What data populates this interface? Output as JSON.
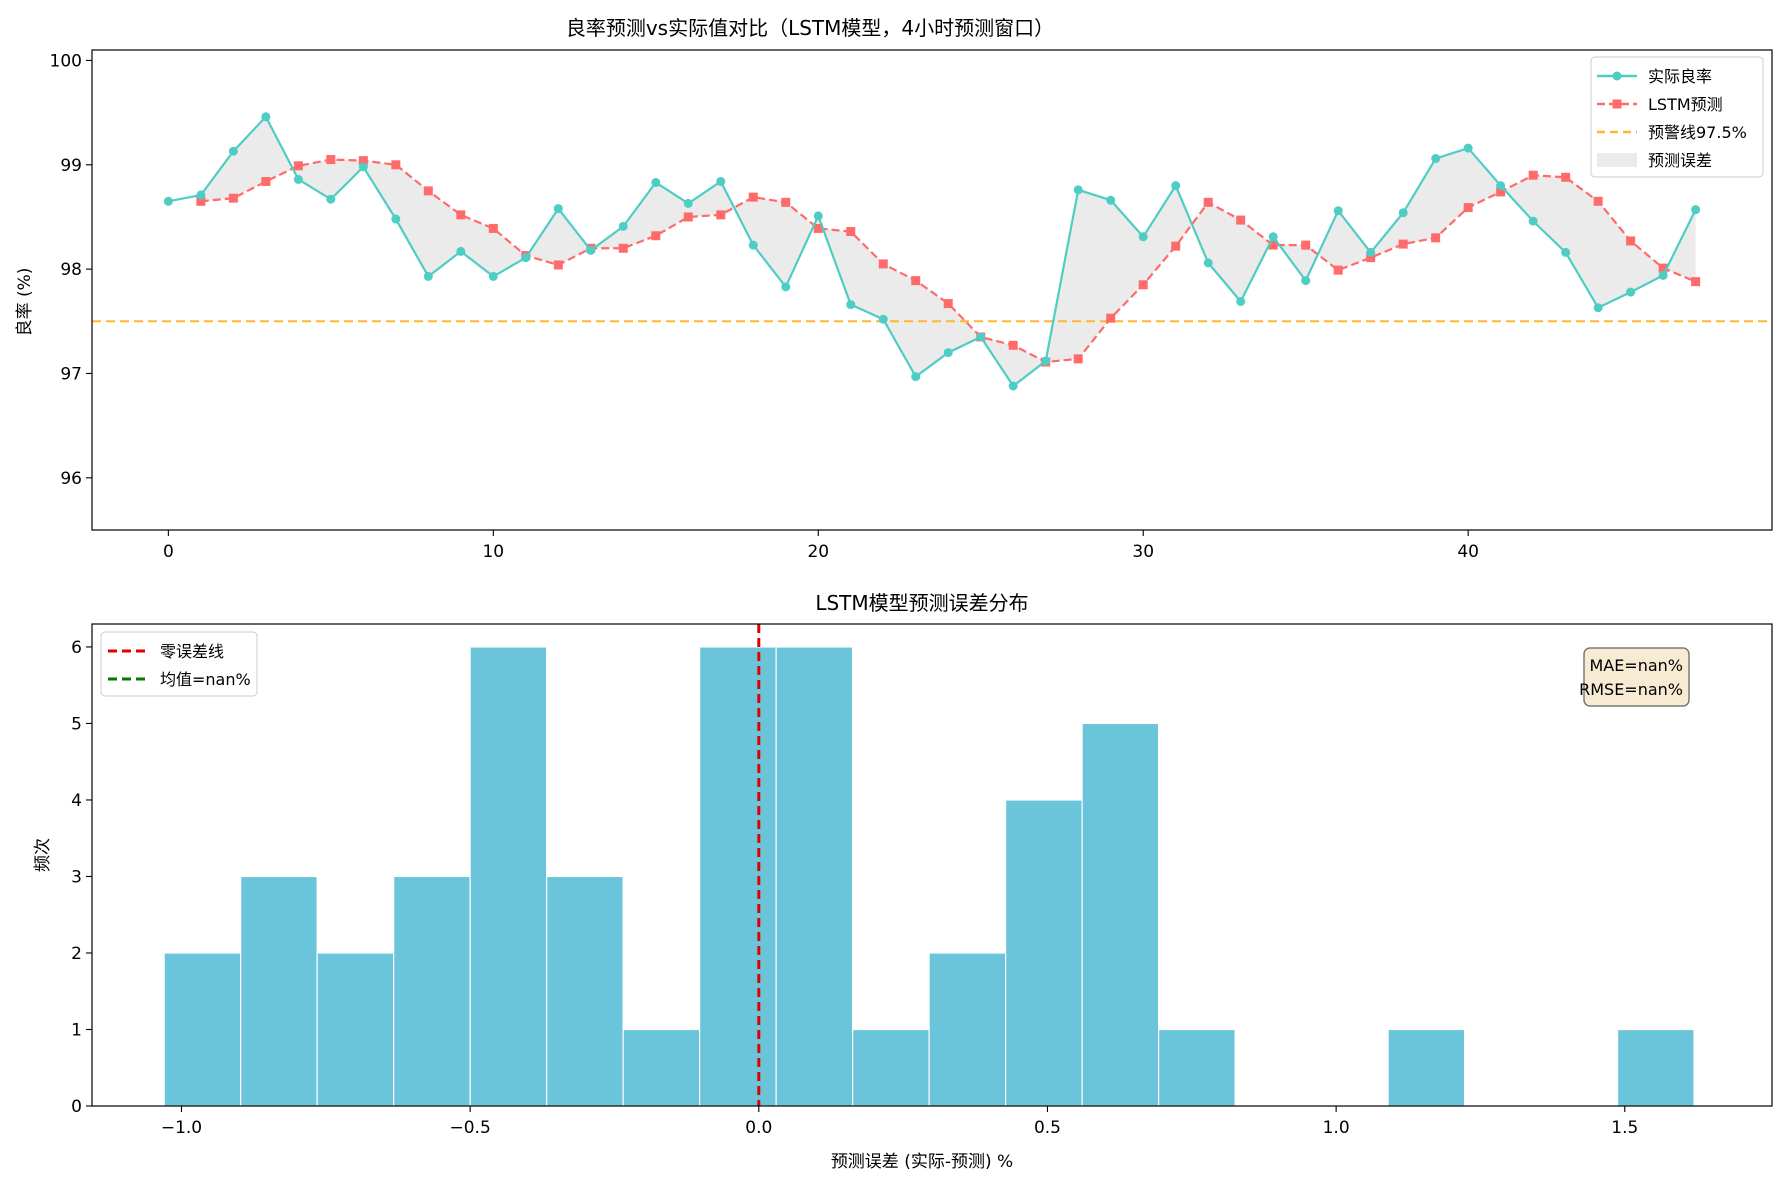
{
  "colors": {
    "actual": "#4ECDC4",
    "pred": "#FF6B6B",
    "warning": "#FFB733",
    "fill": "#D3D3D3",
    "hist": "#6BC5DA",
    "zero": "#E00000",
    "mean": "#007A00",
    "stats_bg": "#F8EBD4"
  },
  "chart_data": [
    {
      "type": "line",
      "title": "良率预测vs实际值对比（LSTM模型，4小时预测窗口）",
      "xlabel": "",
      "ylabel": "良率 (%)",
      "xlim": [
        -2.35,
        49.35
      ],
      "ylim": [
        95.5,
        100.1
      ],
      "xticks": [
        0,
        10,
        20,
        30,
        40
      ],
      "yticks": [
        96,
        97,
        98,
        99,
        100
      ],
      "x": [
        0,
        1,
        2,
        3,
        4,
        5,
        6,
        7,
        8,
        9,
        10,
        11,
        12,
        13,
        14,
        15,
        16,
        17,
        18,
        19,
        20,
        21,
        22,
        23,
        24,
        25,
        26,
        27,
        28,
        29,
        30,
        31,
        32,
        33,
        34,
        35,
        36,
        37,
        38,
        39,
        40,
        41,
        42,
        43,
        44,
        45,
        46,
        47
      ],
      "series": [
        {
          "name": "实际良率",
          "values": [
            98.65,
            98.71,
            99.13,
            99.46,
            98.86,
            98.67,
            98.98,
            98.48,
            97.93,
            98.17,
            97.93,
            98.11,
            98.58,
            98.18,
            98.41,
            98.83,
            98.63,
            98.84,
            98.23,
            97.83,
            98.51,
            97.66,
            97.52,
            96.97,
            97.2,
            97.35,
            96.88,
            97.12,
            98.76,
            98.66,
            98.31,
            98.8,
            98.06,
            97.69,
            98.31,
            97.89,
            98.56,
            98.16,
            98.54,
            99.06,
            99.16,
            98.8,
            98.46,
            98.16,
            97.63,
            97.78,
            97.94,
            98.57
          ]
        },
        {
          "name": "LSTM预测",
          "x": [
            1,
            2,
            3,
            4,
            5,
            6,
            7,
            8,
            9,
            10,
            11,
            12,
            13,
            14,
            15,
            16,
            17,
            18,
            19,
            20,
            21,
            22,
            23,
            24,
            25,
            26,
            27,
            28,
            29,
            30,
            31,
            32,
            33,
            34,
            35,
            36,
            37,
            38,
            39,
            40,
            41,
            42,
            43,
            44,
            45,
            46,
            47
          ],
          "values": [
            98.65,
            98.68,
            98.84,
            98.99,
            99.05,
            99.04,
            99.0,
            98.75,
            98.52,
            98.39,
            98.13,
            98.04,
            98.2,
            98.2,
            98.32,
            98.5,
            98.52,
            98.69,
            98.64,
            98.39,
            98.36,
            98.05,
            97.89,
            97.67,
            97.35,
            97.27,
            97.11,
            97.14,
            97.53,
            97.85,
            98.22,
            98.64,
            98.47,
            98.23,
            98.23,
            97.99,
            98.11,
            98.24,
            98.3,
            98.59,
            98.74,
            98.9,
            98.88,
            98.65,
            98.27,
            98.01,
            97.88
          ]
        },
        {
          "name": "预警线97.5%",
          "value": 97.5
        },
        {
          "name": "预测误差"
        }
      ],
      "legend": "top-right"
    },
    {
      "type": "bar",
      "title": "LSTM模型预测误差分布",
      "xlabel": "预测误差 (实际-预测) %",
      "ylabel": "频次",
      "xlim": [
        -1.155,
        1.755
      ],
      "ylim": [
        0,
        6.3
      ],
      "xticks": [
        -1.0,
        -0.5,
        0.0,
        0.5,
        1.0,
        1.5
      ],
      "xtick_labels": [
        "−1.0",
        "−0.5",
        "0.0",
        "0.5",
        "1.0",
        "1.5"
      ],
      "yticks": [
        0,
        1,
        2,
        3,
        4,
        5,
        6
      ],
      "bin_start": -1.03,
      "bin_width": 0.1325,
      "values": [
        2,
        3,
        2,
        3,
        6,
        3,
        1,
        6,
        6,
        1,
        2,
        4,
        5,
        1,
        0,
        0,
        1,
        0,
        0,
        1
      ],
      "lines": [
        {
          "name": "零误差线",
          "value": 0.0
        },
        {
          "name": "均值=nan%"
        }
      ],
      "annotation": [
        "MAE=nan%",
        "RMSE=nan%"
      ],
      "legend": "top-left"
    }
  ]
}
